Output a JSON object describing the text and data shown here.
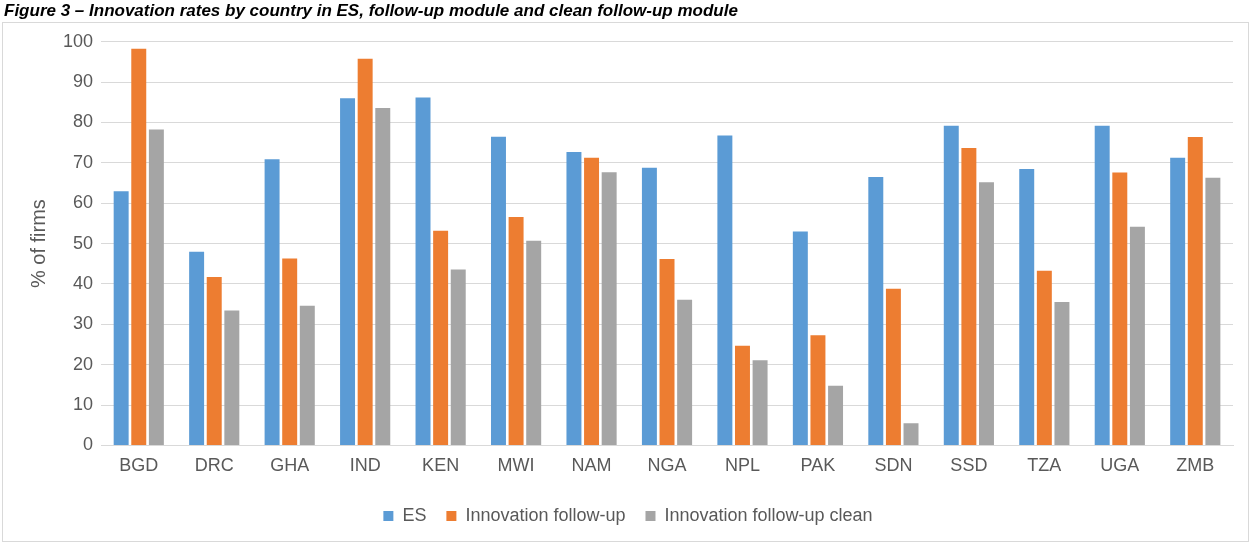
{
  "chart_data": {
    "type": "bar",
    "title": "Figure 3 – Innovation rates by country in ES, follow-up module and clean follow-up module",
    "ylabel": "% of firms",
    "categories": [
      "BGD",
      "DRC",
      "GHA",
      "IND",
      "KEN",
      "MWI",
      "NAM",
      "NGA",
      "NPL",
      "PAK",
      "SDN",
      "SSD",
      "TZA",
      "UGA",
      "ZMB"
    ],
    "series": [
      {
        "name": "ES",
        "color": "#5b9bd5",
        "values": [
          63,
          48,
          70.9,
          86,
          86.2,
          76.5,
          72.7,
          68.8,
          76.8,
          53,
          66.5,
          79.2,
          68.5,
          79.2,
          71.3
        ]
      },
      {
        "name": "Innovation follow-up",
        "color": "#ed7d31",
        "values": [
          98.3,
          41.7,
          46.3,
          95.8,
          53.2,
          56.6,
          71.3,
          46.2,
          24.7,
          27.3,
          38.8,
          73.7,
          43.3,
          67.6,
          76.4
        ]
      },
      {
        "name": "Innovation follow-up clean",
        "color": "#a5a5a5",
        "values": [
          78.3,
          33.4,
          34.6,
          83.6,
          43.6,
          50.7,
          67.7,
          36.1,
          21.1,
          14.8,
          5.5,
          65.2,
          35.5,
          54.2,
          66.3
        ]
      }
    ],
    "ylim": [
      0,
      100
    ],
    "yticks": [
      0,
      10,
      20,
      30,
      40,
      50,
      60,
      70,
      80,
      90,
      100
    ],
    "grid": "y",
    "legend": "bottom"
  }
}
